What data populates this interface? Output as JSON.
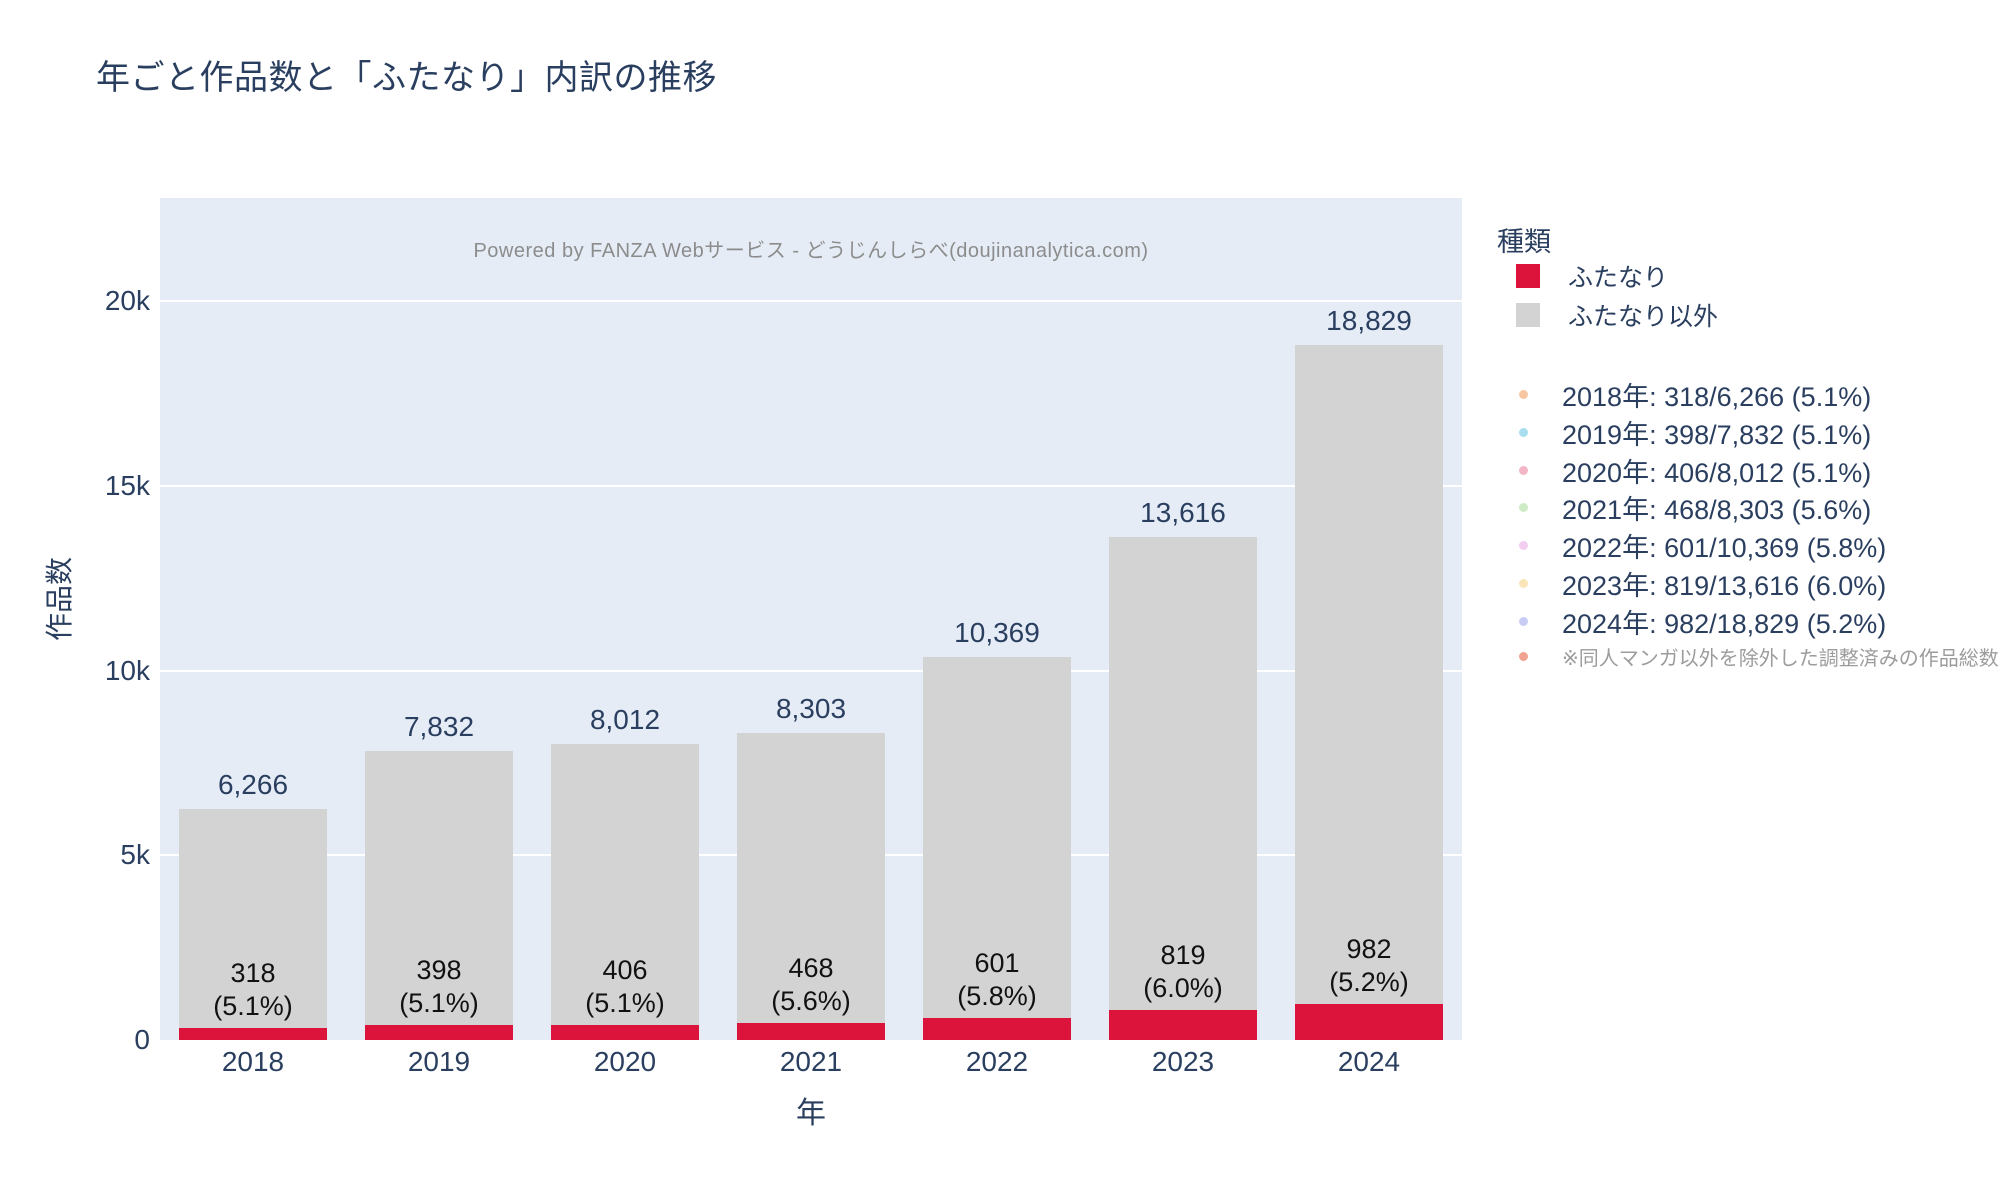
{
  "title": "年ごと作品数と「ふたなり」内訳の推移",
  "watermark": "Powered by FANZA Webサービス - どうじんしらべ(doujinanalytica.com)",
  "colors": {
    "accent_red": "#dc143c",
    "neutral_gray": "#d3d3d3",
    "plot_background": "#e5ecf6",
    "gridline": "#ffffff",
    "text": "#2a3f5f",
    "muted_text": "#8c8c8c"
  },
  "legend": {
    "title": "種類",
    "items": [
      {
        "label": "ふたなり",
        "color": "#dc143c"
      },
      {
        "label": "ふたなり以外",
        "color": "#d3d3d3"
      }
    ]
  },
  "annotations": {
    "lines": [
      {
        "dot_color": "#f7c6a0",
        "text": "2018年: 318/6,266 (5.1%)"
      },
      {
        "dot_color": "#a8deee",
        "text": "2019年: 398/7,832 (5.1%)"
      },
      {
        "dot_color": "#f2b6c6",
        "text": "2020年: 406/8,012 (5.1%)"
      },
      {
        "dot_color": "#cdebc5",
        "text": "2021年: 468/8,303 (5.6%)"
      },
      {
        "dot_color": "#f2cdf0",
        "text": "2022年: 601/10,369 (5.8%)"
      },
      {
        "dot_color": "#fae5b8",
        "text": "2023年: 819/13,616 (6.0%)"
      },
      {
        "dot_color": "#c9ccf4",
        "text": "2024年: 982/18,829 (5.2%)"
      }
    ],
    "note": {
      "dot_color": "#f0a391",
      "text": "※同人マンガ以外を除外した調整済みの作品総数"
    }
  },
  "chart_data": {
    "type": "bar",
    "stacked": true,
    "title": "年ごと作品数と「ふたなり」内訳の推移",
    "xlabel": "年",
    "ylabel": "作品数",
    "categories": [
      "2018",
      "2019",
      "2020",
      "2021",
      "2022",
      "2023",
      "2024"
    ],
    "series": [
      {
        "name": "ふたなり",
        "color": "#dc143c",
        "values": [
          318,
          398,
          406,
          468,
          601,
          819,
          982
        ]
      },
      {
        "name": "ふたなり以外",
        "color": "#d3d3d3",
        "values": [
          5948,
          7434,
          7606,
          7835,
          9768,
          12797,
          17847
        ]
      }
    ],
    "totals": [
      6266,
      7832,
      8012,
      8303,
      10369,
      13616,
      18829
    ],
    "total_labels": [
      "6,266",
      "7,832",
      "8,012",
      "8,303",
      "10,369",
      "13,616",
      "18,829"
    ],
    "inside_labels": [
      [
        "318",
        "(5.1%)"
      ],
      [
        "398",
        "(5.1%)"
      ],
      [
        "406",
        "(5.1%)"
      ],
      [
        "468",
        "(5.6%)"
      ],
      [
        "601",
        "(5.8%)"
      ],
      [
        "819",
        "(6.0%)"
      ],
      [
        "982",
        "(5.2%)"
      ]
    ],
    "percentages": [
      "5.1%",
      "5.1%",
      "5.1%",
      "5.6%",
      "5.8%",
      "6.0%",
      "5.2%"
    ],
    "ylim": [
      0,
      22800
    ],
    "yticks": [
      {
        "value": 0,
        "label": "0"
      },
      {
        "value": 5000,
        "label": "5k"
      },
      {
        "value": 10000,
        "label": "10k"
      },
      {
        "value": 15000,
        "label": "15k"
      },
      {
        "value": 20000,
        "label": "20k"
      }
    ],
    "grid": true,
    "legend_position": "right-outside"
  }
}
